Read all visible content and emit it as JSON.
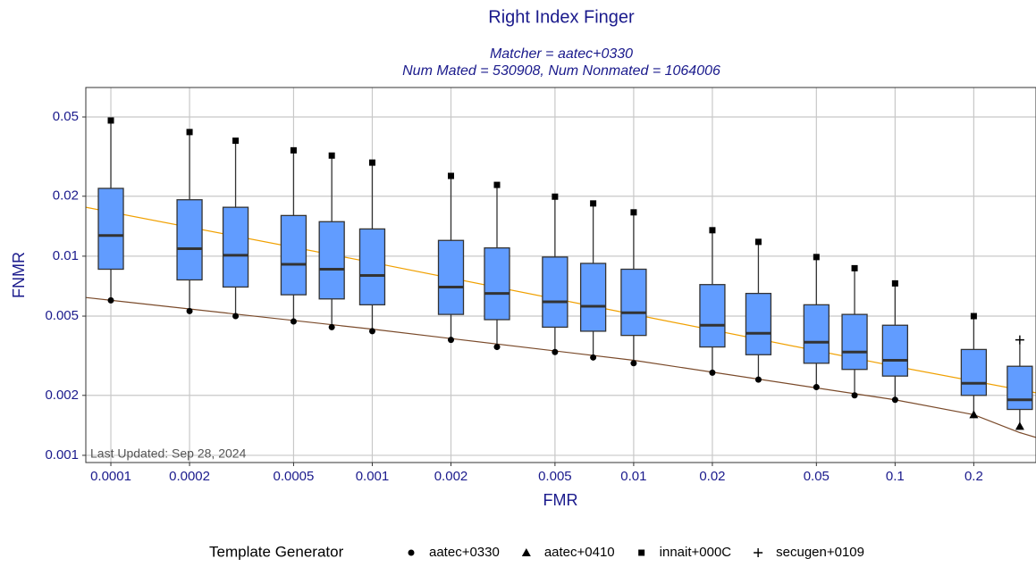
{
  "chart_data": {
    "type": "box",
    "title": "Right Index Finger",
    "subtitle": [
      "Matcher = aatec+0330",
      "Num Mated = 530908, Num Nonmated = 1064006"
    ],
    "x_label": "FMR",
    "y_label": "FNMR",
    "annotation": "Last Updated: Sep 28, 2024",
    "x_log": true,
    "y_log": true,
    "grid": true,
    "xlim": [
      8.02e-05,
      0.346
    ],
    "ylim": [
      0.00092,
      0.0703
    ],
    "xticks": [
      0.0001,
      0.0002,
      0.0005,
      0.001,
      0.002,
      0.005,
      0.01,
      0.02,
      0.05,
      0.1,
      0.2
    ],
    "yticks": [
      0.001,
      0.002,
      0.005,
      0.01,
      0.02,
      0.05
    ],
    "legend": {
      "title": "Template Generator",
      "position": "bottom",
      "entries": [
        {
          "name": "aatec+0330",
          "shape": "circle"
        },
        {
          "name": "aatec+0410",
          "shape": "triangle"
        },
        {
          "name": "innait+000C",
          "shape": "square"
        },
        {
          "name": "secugen+0109",
          "shape": "plus"
        }
      ]
    },
    "box_color": "#619cff",
    "x": [
      0.0001,
      0.0002,
      0.0003,
      0.0005,
      0.0007,
      0.001,
      0.002,
      0.003,
      0.005,
      0.007,
      0.01,
      0.02,
      0.03,
      0.05,
      0.07,
      0.1,
      0.2,
      0.3
    ],
    "max": [
      0.048,
      0.042,
      0.038,
      0.034,
      0.032,
      0.0295,
      0.0253,
      0.0228,
      0.0199,
      0.0184,
      0.0166,
      0.0135,
      0.0118,
      0.0099,
      0.0087,
      0.0073,
      0.005,
      0.0038
    ],
    "q3": [
      0.0219,
      0.0192,
      0.0176,
      0.016,
      0.0149,
      0.0137,
      0.012,
      0.011,
      0.0099,
      0.0092,
      0.0086,
      0.0072,
      0.0065,
      0.0057,
      0.0051,
      0.0045,
      0.0034,
      0.0028
    ],
    "median": [
      0.0127,
      0.0109,
      0.0101,
      0.0091,
      0.0086,
      0.008,
      0.007,
      0.0065,
      0.0059,
      0.0056,
      0.0052,
      0.0045,
      0.0041,
      0.0037,
      0.0033,
      0.003,
      0.0023,
      0.0019
    ],
    "q1": [
      0.0086,
      0.0076,
      0.007,
      0.0064,
      0.0061,
      0.0057,
      0.0051,
      0.0048,
      0.0044,
      0.0042,
      0.004,
      0.0035,
      0.0032,
      0.0029,
      0.0027,
      0.0025,
      0.002,
      0.0017
    ],
    "min": [
      0.006,
      0.0053,
      0.005,
      0.0047,
      0.0044,
      0.0042,
      0.0038,
      0.0035,
      0.0033,
      0.0031,
      0.0029,
      0.0026,
      0.0024,
      0.0022,
      0.002,
      0.0019,
      0.0016,
      0.0014
    ],
    "min_by": [
      0,
      0,
      0,
      0,
      0,
      0,
      0,
      0,
      0,
      0,
      0,
      0,
      0,
      0,
      0,
      0,
      1,
      1
    ],
    "max_by": [
      2,
      2,
      2,
      2,
      2,
      2,
      2,
      2,
      2,
      2,
      2,
      2,
      2,
      2,
      2,
      2,
      2,
      3
    ],
    "lines": [
      {
        "color": "#f0a000",
        "x": [
          8.02e-05,
          0.001,
          0.01,
          0.1,
          0.346
        ],
        "values": [
          0.0176,
          0.0093,
          0.0051,
          0.0028,
          0.00206
        ]
      },
      {
        "color": "#7a4a2a",
        "x": [
          8.02e-05,
          0.001,
          0.01,
          0.1,
          0.2,
          0.3,
          0.346
        ],
        "values": [
          0.0062,
          0.0043,
          0.003,
          0.0019,
          0.0016,
          0.0013,
          0.00123
        ]
      }
    ]
  }
}
